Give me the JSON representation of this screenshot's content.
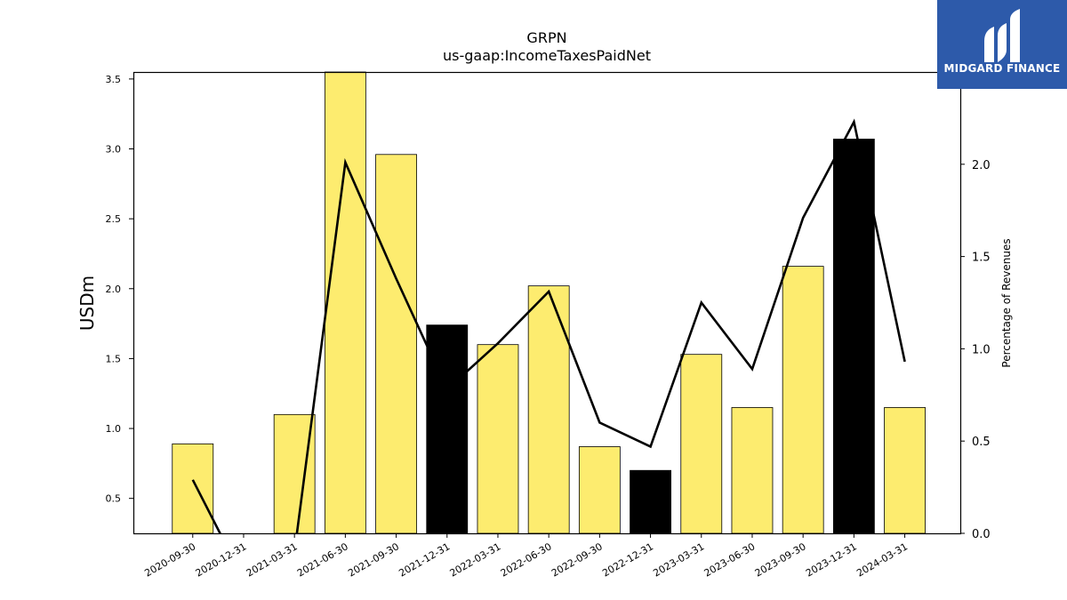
{
  "chart_data": {
    "type": "bar",
    "title": "GRPN",
    "subtitle": "us-gaap:IncomeTaxesPaidNet",
    "ylabel": "USDm",
    "y2label": "Percentage of Revenues",
    "ylim": [
      0.25,
      3.55
    ],
    "y_ticks": [
      0.5,
      1.0,
      1.5,
      2.0,
      2.5,
      3.0,
      3.5
    ],
    "y2lim": [
      0.0,
      2.5
    ],
    "y2_ticks": [
      0.0,
      0.5,
      1.0,
      1.5,
      2.0
    ],
    "categories": [
      "2020-09-30",
      "2020-12-31",
      "2021-03-31",
      "2021-06-30",
      "2021-09-30",
      "2021-12-31",
      "2022-03-31",
      "2022-06-30",
      "2022-09-30",
      "2022-12-31",
      "2023-03-31",
      "2023-06-30",
      "2023-09-30",
      "2023-12-31",
      "2024-03-31"
    ],
    "series": [
      {
        "type": "bar",
        "axis": "left",
        "values": [
          0.89,
          null,
          1.1,
          3.55,
          2.96,
          1.74,
          1.6,
          2.02,
          0.87,
          0.7,
          1.53,
          1.15,
          2.16,
          3.07,
          1.15
        ],
        "colors": [
          "#FDEC6F",
          null,
          "#FDEC6F",
          "#FDEC6F",
          "#FDEC6F",
          "#000000",
          "#FDEC6F",
          "#FDEC6F",
          "#FDEC6F",
          "#000000",
          "#FDEC6F",
          "#FDEC6F",
          "#FDEC6F",
          "#000000",
          "#FDEC6F"
        ]
      },
      {
        "type": "line",
        "axis": "right",
        "color": "#000000",
        "values": [
          0.29,
          -0.25,
          -0.1,
          2.01,
          1.38,
          0.78,
          1.03,
          1.31,
          0.6,
          0.47,
          1.25,
          0.89,
          1.71,
          2.23,
          0.93
        ]
      }
    ],
    "grid": false
  },
  "brand": {
    "name": "MIDGARD FINANCE",
    "bg_color": "#2D5AAA"
  }
}
